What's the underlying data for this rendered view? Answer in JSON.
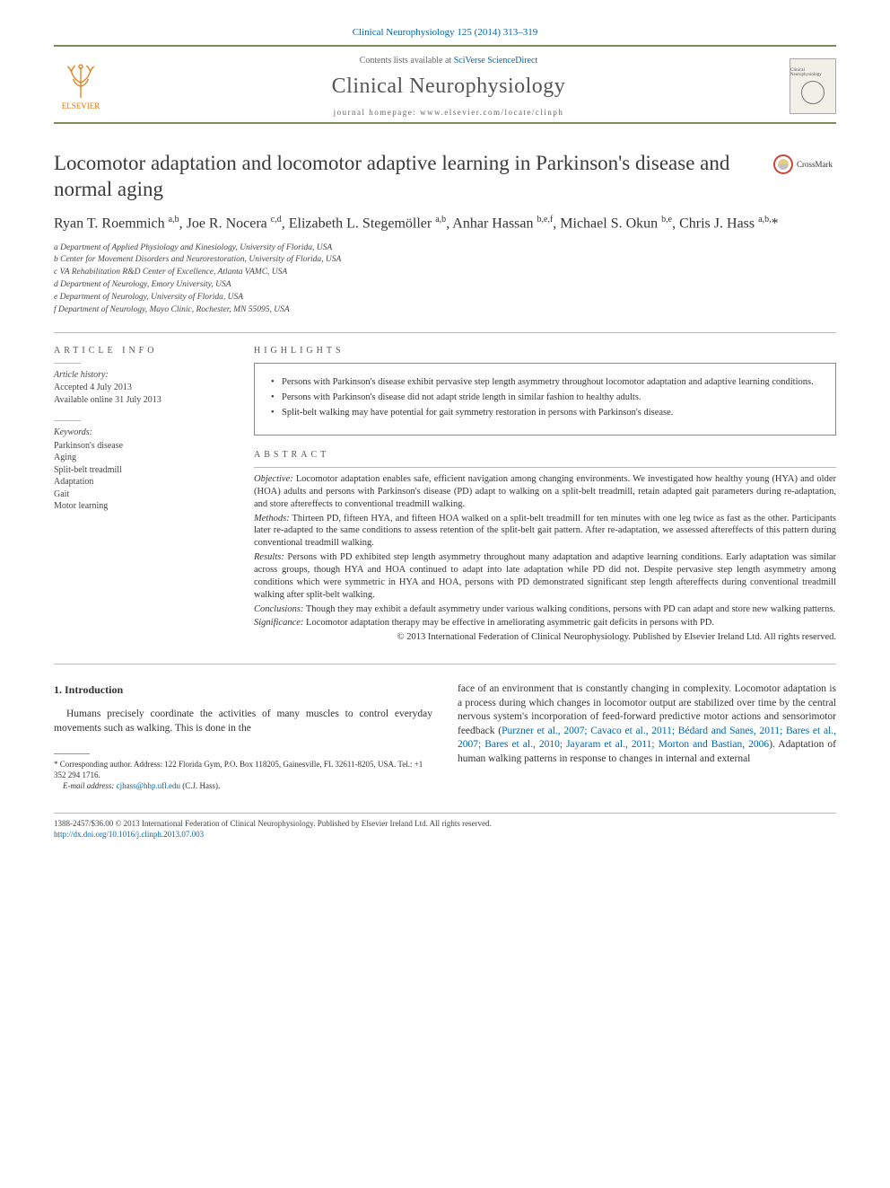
{
  "header": {
    "citation": "Clinical Neurophysiology 125 (2014) 313–319",
    "contents_prefix": "Contents lists available at ",
    "contents_link": "SciVerse ScienceDirect",
    "journal": "Clinical Neurophysiology",
    "homepage_prefix": "journal homepage: ",
    "homepage": "www.elsevier.com/locate/clinph",
    "publisher_label": "ELSEVIER"
  },
  "title": "Locomotor adaptation and locomotor adaptive learning in Parkinson's disease and normal aging",
  "crossmark": "CrossMark",
  "authors_html": "Ryan T. Roemmich <sup>a,b</sup>, Joe R. Nocera <sup>c,d</sup>, Elizabeth L. Stegemöller <sup>a,b</sup>, Anhar Hassan <sup>b,e,f</sup>, Michael S. Okun <sup>b,e</sup>, Chris J. Hass <sup>a,b,</sup>*",
  "affiliations": [
    "a Department of Applied Physiology and Kinesiology, University of Florida, USA",
    "b Center for Movement Disorders and Neurorestoration, University of Florida, USA",
    "c VA Rehabilitation R&D Center of Excellence, Atlanta VAMC, USA",
    "d Department of Neurology, Emory University, USA",
    "e Department of Neurology, University of Florida, USA",
    "f Department of Neurology, Mayo Clinic, Rochester, MN 55095, USA"
  ],
  "info": {
    "heading": "ARTICLE INFO",
    "history_label": "Article history:",
    "history": [
      "Accepted 4 July 2013",
      "Available online 31 July 2013"
    ],
    "keywords_label": "Keywords:",
    "keywords": [
      "Parkinson's disease",
      "Aging",
      "Split-belt treadmill",
      "Adaptation",
      "Gait",
      "Motor learning"
    ]
  },
  "highlights_heading": "HIGHLIGHTS",
  "highlights": [
    "Persons with Parkinson's disease exhibit pervasive step length asymmetry throughout locomotor adaptation and adaptive learning conditions.",
    "Persons with Parkinson's disease did not adapt stride length in similar fashion to healthy adults.",
    "Split-belt walking may have potential for gait symmetry restoration in persons with Parkinson's disease."
  ],
  "abstract_heading": "ABSTRACT",
  "abstract": {
    "objective_label": "Objective:",
    "objective": " Locomotor adaptation enables safe, efficient navigation among changing environments. We investigated how healthy young (HYA) and older (HOA) adults and persons with Parkinson's disease (PD) adapt to walking on a split-belt treadmill, retain adapted gait parameters during re-adaptation, and store aftereffects to conventional treadmill walking.",
    "methods_label": "Methods:",
    "methods": " Thirteen PD, fifteen HYA, and fifteen HOA walked on a split-belt treadmill for ten minutes with one leg twice as fast as the other. Participants later re-adapted to the same conditions to assess retention of the split-belt gait pattern. After re-adaptation, we assessed aftereffects of this pattern during conventional treadmill walking.",
    "results_label": "Results:",
    "results": " Persons with PD exhibited step length asymmetry throughout many adaptation and adaptive learning conditions. Early adaptation was similar across groups, though HYA and HOA continued to adapt into late adaptation while PD did not. Despite pervasive step length asymmetry among conditions which were symmetric in HYA and HOA, persons with PD demonstrated significant step length aftereffects during conventional treadmill walking after split-belt walking.",
    "conclusions_label": "Conclusions:",
    "conclusions": " Though they may exhibit a default asymmetry under various walking conditions, persons with PD can adapt and store new walking patterns.",
    "significance_label": "Significance:",
    "significance": " Locomotor adaptation therapy may be effective in ameliorating asymmetric gait deficits in persons with PD.",
    "copyright": "© 2013 International Federation of Clinical Neurophysiology. Published by Elsevier Ireland Ltd. All rights reserved."
  },
  "body": {
    "section_heading": "1. Introduction",
    "left_para": "Humans precisely coordinate the activities of many muscles to control everyday movements such as walking. This is done in the",
    "right_pre": "face of an environment that is constantly changing in complexity. Locomotor adaptation is a process during which changes in locomotor output are stabilized over time by the central nervous system's incorporation of feed-forward predictive motor actions and sensorimotor feedback (",
    "right_refs": "Purzner et al., 2007; Cavaco et al., 2011; Bédard and Sanes, 2011; Bares et al., 2007; Bares et al., 2010; Jayaram et al., 2011; Morton and Bastian, 2006",
    "right_post": "). Adaptation of human walking patterns in response to changes in internal and external"
  },
  "footnote": {
    "corr_prefix": "* Corresponding author. Address: 122 Florida Gym, P.O. Box 118205, Gainesville, FL 32611-8205, USA. Tel.: +1 352 294 1716.",
    "email_label": "E-mail address:",
    "email": " cjhass@hhp.ufl.edu ",
    "email_who": "(C.J. Hass)."
  },
  "bottom": {
    "line1": "1388-2457/$36.00 © 2013 International Federation of Clinical Neurophysiology. Published by Elsevier Ireland Ltd. All rights reserved.",
    "doi": "http://dx.doi.org/10.1016/j.clinph.2013.07.003"
  },
  "style": {
    "link_color": "#0066aa",
    "rule_color": "#7a8a5a",
    "text_color": "#333333",
    "elsevier_orange": "#e8760a"
  }
}
